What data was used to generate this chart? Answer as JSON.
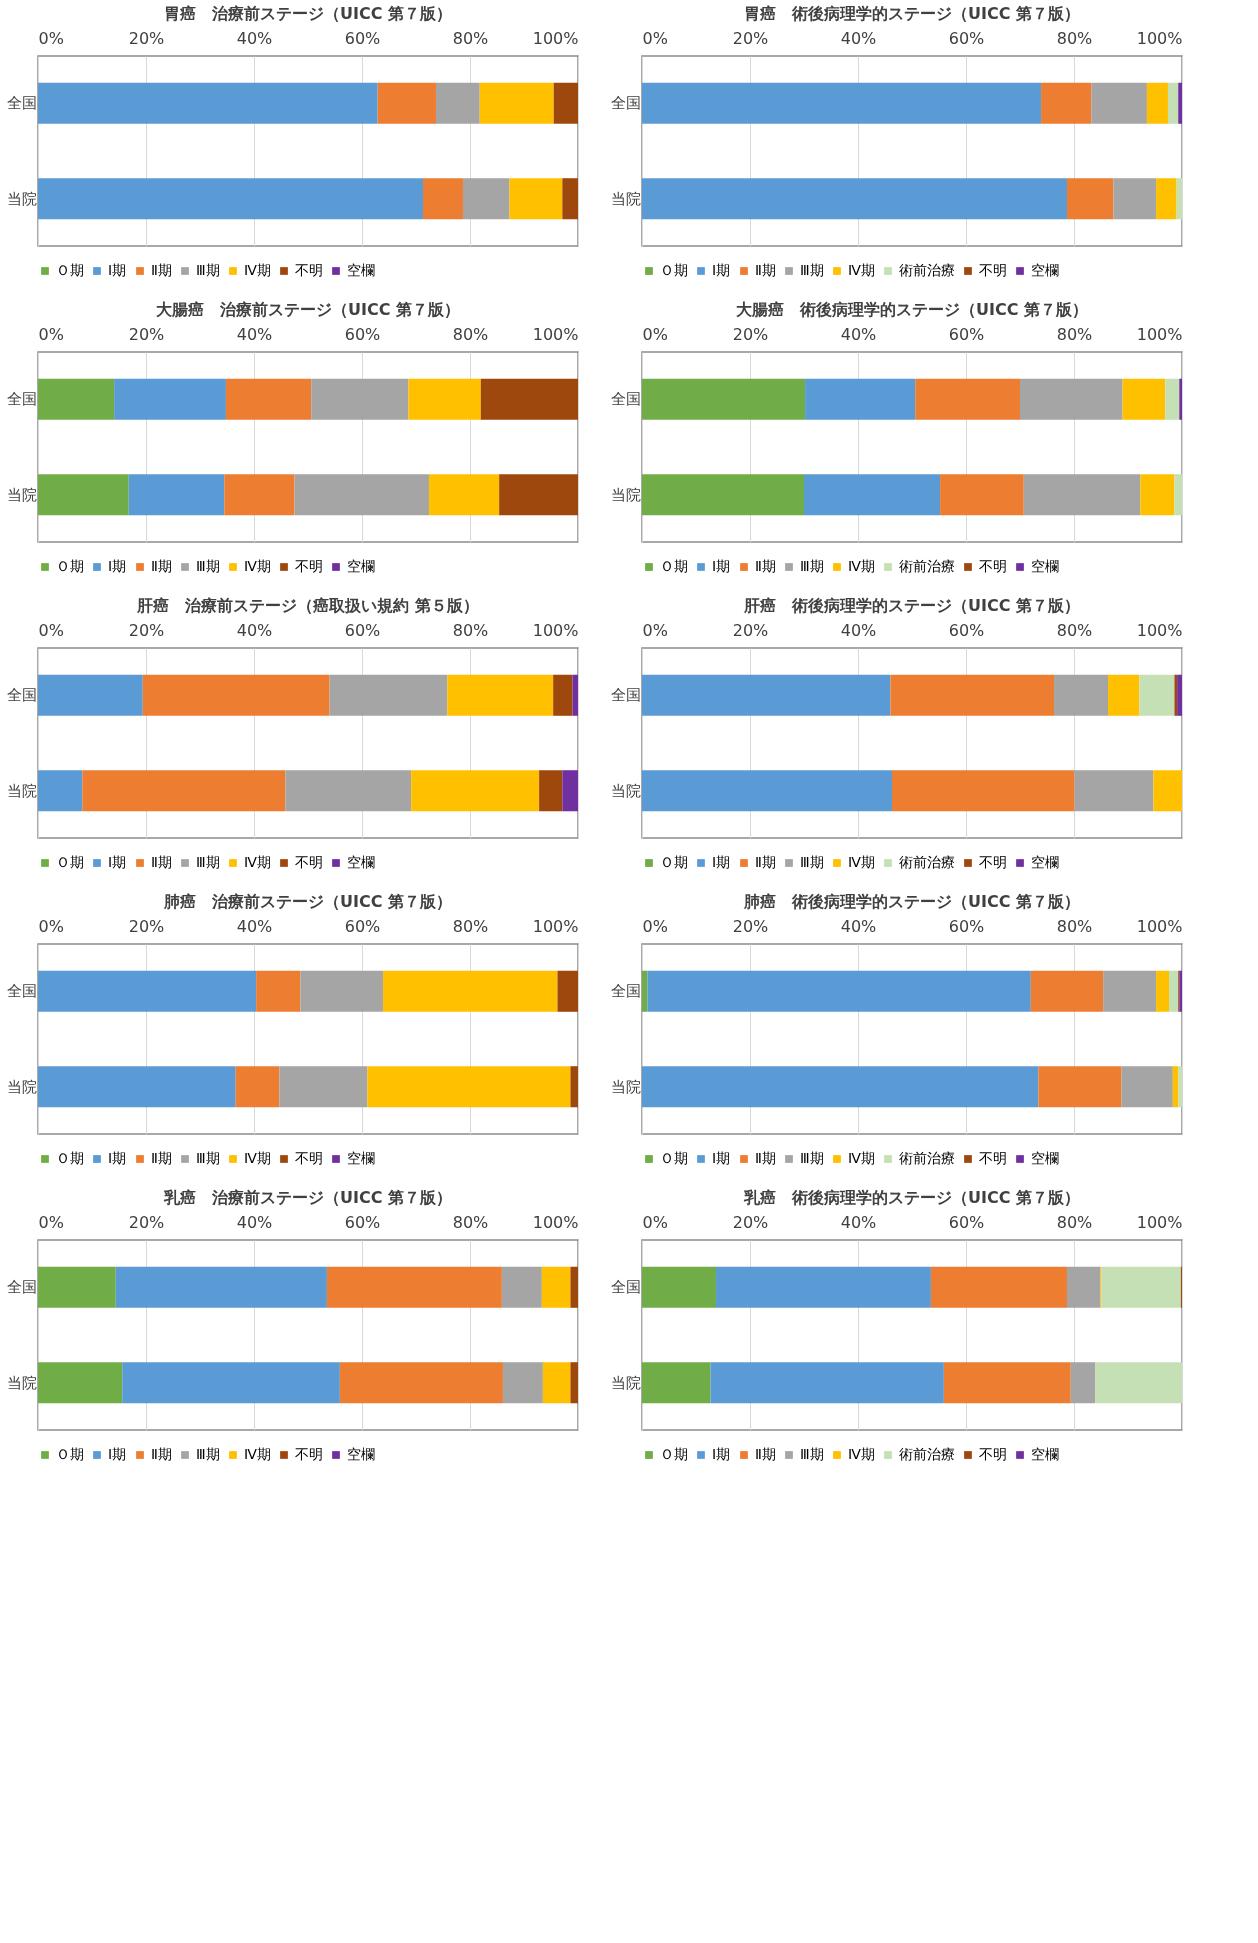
{
  "chart_data": [
    {
      "type": "bar",
      "orientation": "horizontal",
      "stacked": true,
      "grid": "x",
      "legend": "bottom",
      "title": "胃癌　治療前ステージ（UICC 第７版）",
      "categories": [
        "全国",
        "当院"
      ],
      "xlim": [
        0,
        100
      ],
      "xticks": [
        {
          "value": 0,
          "label": "0%"
        },
        {
          "value": 20,
          "label": "20%"
        },
        {
          "value": 40,
          "label": "40%"
        },
        {
          "value": 60,
          "label": "60%"
        },
        {
          "value": 80,
          "label": "80%"
        },
        {
          "value": 100,
          "label": "100%"
        }
      ],
      "series": [
        {
          "name": "Ｏ期",
          "color": "#70ad47",
          "values": [
            0,
            0
          ]
        },
        {
          "name": "Ⅰ期",
          "color": "#5b9bd5",
          "values": [
            62.9,
            71.3
          ]
        },
        {
          "name": "Ⅱ期",
          "color": "#ed7d31",
          "values": [
            10.8,
            7.4
          ]
        },
        {
          "name": "Ⅲ期",
          "color": "#a5a5a5",
          "values": [
            8.1,
            8.6
          ]
        },
        {
          "name": "Ⅳ期",
          "color": "#ffc000",
          "values": [
            13.7,
            9.8
          ]
        },
        {
          "name": "不明",
          "color": "#9e480e",
          "values": [
            4.5,
            2.9
          ]
        },
        {
          "name": "空欄",
          "color": "#7030a0",
          "values": [
            0,
            0
          ]
        }
      ]
    },
    {
      "type": "bar",
      "orientation": "horizontal",
      "stacked": true,
      "grid": "x",
      "legend": "bottom",
      "title": "胃癌　術後病理学的ステージ（UICC 第７版）",
      "categories": [
        "全国",
        "当院"
      ],
      "xlim": [
        0,
        100
      ],
      "xticks": [
        {
          "value": 0,
          "label": "0%"
        },
        {
          "value": 20,
          "label": "20%"
        },
        {
          "value": 40,
          "label": "40%"
        },
        {
          "value": 60,
          "label": "60%"
        },
        {
          "value": 80,
          "label": "80%"
        },
        {
          "value": 100,
          "label": "100%"
        }
      ],
      "series": [
        {
          "name": "Ｏ期",
          "color": "#70ad47",
          "values": [
            0,
            0
          ]
        },
        {
          "name": "Ⅰ期",
          "color": "#5b9bd5",
          "values": [
            73.9,
            78.7
          ]
        },
        {
          "name": "Ⅱ期",
          "color": "#ed7d31",
          "values": [
            9.3,
            8.6
          ]
        },
        {
          "name": "Ⅲ期",
          "color": "#a5a5a5",
          "values": [
            10.3,
            7.9
          ]
        },
        {
          "name": "Ⅳ期",
          "color": "#ffc000",
          "values": [
            3.9,
            3.8
          ]
        },
        {
          "name": "術前治療",
          "color": "#c5e0b4",
          "values": [
            1.9,
            1.0
          ]
        },
        {
          "name": "不明",
          "color": "#9e480e",
          "values": [
            0,
            0
          ]
        },
        {
          "name": "空欄",
          "color": "#7030a0",
          "values": [
            0.7,
            0
          ]
        }
      ]
    },
    {
      "type": "bar",
      "orientation": "horizontal",
      "stacked": true,
      "grid": "x",
      "legend": "bottom",
      "title": "大腸癌　治療前ステージ（UICC 第７版）",
      "categories": [
        "全国",
        "当院"
      ],
      "xlim": [
        0,
        100
      ],
      "xticks": [
        {
          "value": 0,
          "label": "0%"
        },
        {
          "value": 20,
          "label": "20%"
        },
        {
          "value": 40,
          "label": "40%"
        },
        {
          "value": 60,
          "label": "60%"
        },
        {
          "value": 80,
          "label": "80%"
        },
        {
          "value": 100,
          "label": "100%"
        }
      ],
      "series": [
        {
          "name": "Ｏ期",
          "color": "#70ad47",
          "values": [
            14.1,
            16.8
          ]
        },
        {
          "name": "Ⅰ期",
          "color": "#5b9bd5",
          "values": [
            20.7,
            17.7
          ]
        },
        {
          "name": "Ⅱ期",
          "color": "#ed7d31",
          "values": [
            15.8,
            13.0
          ]
        },
        {
          "name": "Ⅲ期",
          "color": "#a5a5a5",
          "values": [
            18.0,
            24.9
          ]
        },
        {
          "name": "Ⅳ期",
          "color": "#ffc000",
          "values": [
            13.4,
            13.0
          ]
        },
        {
          "name": "不明",
          "color": "#9e480e",
          "values": [
            18.0,
            14.6
          ]
        },
        {
          "name": "空欄",
          "color": "#7030a0",
          "values": [
            0,
            0
          ]
        }
      ]
    },
    {
      "type": "bar",
      "orientation": "horizontal",
      "stacked": true,
      "grid": "x",
      "legend": "bottom",
      "title": "大腸癌　術後病理学的ステージ（UICC 第７版）",
      "categories": [
        "全国",
        "当院"
      ],
      "xlim": [
        0,
        100
      ],
      "xticks": [
        {
          "value": 0,
          "label": "0%"
        },
        {
          "value": 20,
          "label": "20%"
        },
        {
          "value": 40,
          "label": "40%"
        },
        {
          "value": 60,
          "label": "60%"
        },
        {
          "value": 80,
          "label": "80%"
        },
        {
          "value": 100,
          "label": "100%"
        }
      ],
      "series": [
        {
          "name": "Ｏ期",
          "color": "#70ad47",
          "values": [
            30.2,
            30.0
          ]
        },
        {
          "name": "Ⅰ期",
          "color": "#5b9bd5",
          "values": [
            20.4,
            25.2
          ]
        },
        {
          "name": "Ⅱ期",
          "color": "#ed7d31",
          "values": [
            19.4,
            15.5
          ]
        },
        {
          "name": "Ⅲ期",
          "color": "#a5a5a5",
          "values": [
            19.0,
            21.6
          ]
        },
        {
          "name": "Ⅳ期",
          "color": "#ffc000",
          "values": [
            7.9,
            6.3
          ]
        },
        {
          "name": "術前治療",
          "color": "#c5e0b4",
          "values": [
            2.6,
            1.4
          ]
        },
        {
          "name": "不明",
          "color": "#9e480e",
          "values": [
            0,
            0
          ]
        },
        {
          "name": "空欄",
          "color": "#7030a0",
          "values": [
            0.5,
            0
          ]
        }
      ]
    },
    {
      "type": "bar",
      "orientation": "horizontal",
      "stacked": true,
      "grid": "x",
      "legend": "bottom",
      "title": "肝癌　治療前ステージ（癌取扱い規約 第５版）",
      "categories": [
        "全国",
        "当院"
      ],
      "xlim": [
        0,
        100
      ],
      "xticks": [
        {
          "value": 0,
          "label": "0%"
        },
        {
          "value": 20,
          "label": "20%"
        },
        {
          "value": 40,
          "label": "40%"
        },
        {
          "value": 60,
          "label": "60%"
        },
        {
          "value": 80,
          "label": "80%"
        },
        {
          "value": 100,
          "label": "100%"
        }
      ],
      "series": [
        {
          "name": "Ｏ期",
          "color": "#70ad47",
          "values": [
            0,
            0
          ]
        },
        {
          "name": "Ⅰ期",
          "color": "#5b9bd5",
          "values": [
            19.4,
            8.2
          ]
        },
        {
          "name": "Ⅱ期",
          "color": "#ed7d31",
          "values": [
            34.6,
            37.6
          ]
        },
        {
          "name": "Ⅲ期",
          "color": "#a5a5a5",
          "values": [
            21.8,
            23.3
          ]
        },
        {
          "name": "Ⅳ期",
          "color": "#ffc000",
          "values": [
            19.6,
            23.7
          ]
        },
        {
          "name": "不明",
          "color": "#9e480e",
          "values": [
            3.6,
            4.3
          ]
        },
        {
          "name": "空欄",
          "color": "#7030a0",
          "values": [
            1.0,
            2.9
          ]
        }
      ]
    },
    {
      "type": "bar",
      "orientation": "horizontal",
      "stacked": true,
      "grid": "x",
      "legend": "bottom",
      "title": "肝癌　術後病理学的ステージ（UICC 第７版）",
      "categories": [
        "全国",
        "当院"
      ],
      "xlim": [
        0,
        100
      ],
      "xticks": [
        {
          "value": 0,
          "label": "0%"
        },
        {
          "value": 20,
          "label": "20%"
        },
        {
          "value": 40,
          "label": "40%"
        },
        {
          "value": 60,
          "label": "60%"
        },
        {
          "value": 80,
          "label": "80%"
        },
        {
          "value": 100,
          "label": "100%"
        }
      ],
      "series": [
        {
          "name": "Ｏ期",
          "color": "#70ad47",
          "values": [
            0,
            0
          ]
        },
        {
          "name": "Ⅰ期",
          "color": "#5b9bd5",
          "values": [
            46.0,
            46.3
          ]
        },
        {
          "name": "Ⅱ期",
          "color": "#ed7d31",
          "values": [
            30.3,
            33.8
          ]
        },
        {
          "name": "Ⅲ期",
          "color": "#a5a5a5",
          "values": [
            10.0,
            14.6
          ]
        },
        {
          "name": "Ⅳ期",
          "color": "#ffc000",
          "values": [
            5.8,
            5.3
          ]
        },
        {
          "name": "術前治療",
          "color": "#c5e0b4",
          "values": [
            6.5,
            0
          ]
        },
        {
          "name": "不明",
          "color": "#9e480e",
          "values": [
            0.5,
            0
          ]
        },
        {
          "name": "空欄",
          "color": "#7030a0",
          "values": [
            0.9,
            0
          ]
        }
      ]
    },
    {
      "type": "bar",
      "orientation": "horizontal",
      "stacked": true,
      "grid": "x",
      "legend": "bottom",
      "title": "肺癌　治療前ステージ（UICC 第７版）",
      "categories": [
        "全国",
        "当院"
      ],
      "xlim": [
        0,
        100
      ],
      "xticks": [
        {
          "value": 0,
          "label": "0%"
        },
        {
          "value": 20,
          "label": "20%"
        },
        {
          "value": 40,
          "label": "40%"
        },
        {
          "value": 60,
          "label": "60%"
        },
        {
          "value": 80,
          "label": "80%"
        },
        {
          "value": 100,
          "label": "100%"
        }
      ],
      "series": [
        {
          "name": "Ｏ期",
          "color": "#70ad47",
          "values": [
            0,
            0
          ]
        },
        {
          "name": "Ⅰ期",
          "color": "#5b9bd5",
          "values": [
            40.4,
            36.6
          ]
        },
        {
          "name": "Ⅱ期",
          "color": "#ed7d31",
          "values": [
            8.2,
            8.1
          ]
        },
        {
          "name": "Ⅲ期",
          "color": "#a5a5a5",
          "values": [
            15.3,
            16.3
          ]
        },
        {
          "name": "Ⅳ期",
          "color": "#ffc000",
          "values": [
            32.3,
            37.6
          ]
        },
        {
          "name": "不明",
          "color": "#9e480e",
          "values": [
            3.8,
            1.4
          ]
        },
        {
          "name": "空欄",
          "color": "#7030a0",
          "values": [
            0,
            0
          ]
        }
      ]
    },
    {
      "type": "bar",
      "orientation": "horizontal",
      "stacked": true,
      "grid": "x",
      "legend": "bottom",
      "title": "肺癌　術後病理学的ステージ（UICC 第７版）",
      "categories": [
        "全国",
        "当院"
      ],
      "xlim": [
        0,
        100
      ],
      "xticks": [
        {
          "value": 0,
          "label": "0%"
        },
        {
          "value": 20,
          "label": "20%"
        },
        {
          "value": 40,
          "label": "40%"
        },
        {
          "value": 60,
          "label": "60%"
        },
        {
          "value": 80,
          "label": "80%"
        },
        {
          "value": 100,
          "label": "100%"
        }
      ],
      "series": [
        {
          "name": "Ｏ期",
          "color": "#70ad47",
          "values": [
            1.0,
            0
          ]
        },
        {
          "name": "Ⅰ期",
          "color": "#5b9bd5",
          "values": [
            71.0,
            73.4
          ]
        },
        {
          "name": "Ⅱ期",
          "color": "#ed7d31",
          "values": [
            13.4,
            15.4
          ]
        },
        {
          "name": "Ⅲ期",
          "color": "#a5a5a5",
          "values": [
            9.8,
            9.5
          ]
        },
        {
          "name": "Ⅳ期",
          "color": "#ffc000",
          "values": [
            2.4,
            1.0
          ]
        },
        {
          "name": "術前治療",
          "color": "#c5e0b4",
          "values": [
            1.7,
            0.7
          ]
        },
        {
          "name": "不明",
          "color": "#9e480e",
          "values": [
            0.2,
            0
          ]
        },
        {
          "name": "空欄",
          "color": "#7030a0",
          "values": [
            0.5,
            0
          ]
        }
      ]
    },
    {
      "type": "bar",
      "orientation": "horizontal",
      "stacked": true,
      "grid": "x",
      "legend": "bottom",
      "title": "乳癌　治療前ステージ（UICC 第７版）",
      "categories": [
        "全国",
        "当院"
      ],
      "xlim": [
        0,
        100
      ],
      "xticks": [
        {
          "value": 0,
          "label": "0%"
        },
        {
          "value": 20,
          "label": "20%"
        },
        {
          "value": 40,
          "label": "40%"
        },
        {
          "value": 60,
          "label": "60%"
        },
        {
          "value": 80,
          "label": "80%"
        },
        {
          "value": 100,
          "label": "100%"
        }
      ],
      "series": [
        {
          "name": "Ｏ期",
          "color": "#70ad47",
          "values": [
            14.4,
            15.6
          ]
        },
        {
          "name": "Ⅰ期",
          "color": "#5b9bd5",
          "values": [
            39.1,
            40.3
          ]
        },
        {
          "name": "Ⅱ期",
          "color": "#ed7d31",
          "values": [
            32.4,
            30.2
          ]
        },
        {
          "name": "Ⅲ期",
          "color": "#a5a5a5",
          "values": [
            7.4,
            7.4
          ]
        },
        {
          "name": "Ⅳ期",
          "color": "#ffc000",
          "values": [
            5.3,
            5.1
          ]
        },
        {
          "name": "不明",
          "color": "#9e480e",
          "values": [
            1.4,
            1.4
          ]
        },
        {
          "name": "空欄",
          "color": "#7030a0",
          "values": [
            0,
            0
          ]
        }
      ]
    },
    {
      "type": "bar",
      "orientation": "horizontal",
      "stacked": true,
      "grid": "x",
      "legend": "bottom",
      "title": "乳癌　術後病理学的ステージ（UICC 第７版）",
      "categories": [
        "全国",
        "当院"
      ],
      "xlim": [
        0,
        100
      ],
      "xticks": [
        {
          "value": 0,
          "label": "0%"
        },
        {
          "value": 20,
          "label": "20%"
        },
        {
          "value": 40,
          "label": "40%"
        },
        {
          "value": 60,
          "label": "60%"
        },
        {
          "value": 80,
          "label": "80%"
        },
        {
          "value": 100,
          "label": "100%"
        }
      ],
      "series": [
        {
          "name": "Ｏ期",
          "color": "#70ad47",
          "values": [
            13.7,
            12.7
          ]
        },
        {
          "name": "Ⅰ期",
          "color": "#5b9bd5",
          "values": [
            39.8,
            43.2
          ]
        },
        {
          "name": "Ⅱ期",
          "color": "#ed7d31",
          "values": [
            25.2,
            23.5
          ]
        },
        {
          "name": "Ⅲ期",
          "color": "#a5a5a5",
          "values": [
            6.2,
            4.5
          ]
        },
        {
          "name": "Ⅳ期",
          "color": "#ffc000",
          "values": [
            0.2,
            0
          ]
        },
        {
          "name": "術前治療",
          "color": "#c5e0b4",
          "values": [
            14.7,
            16.1
          ]
        },
        {
          "name": "不明",
          "color": "#9e480e",
          "values": [
            0.2,
            0
          ]
        },
        {
          "name": "空欄",
          "color": "#7030a0",
          "values": [
            0,
            0
          ]
        }
      ]
    }
  ]
}
